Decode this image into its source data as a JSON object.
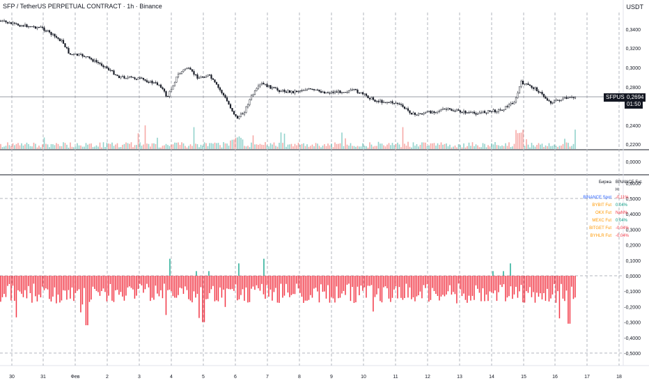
{
  "header": {
    "title": "SFP / TetherUS PERPETUAL CONTRACT · 1h · Binance"
  },
  "currency": "USDT",
  "price_axis": [
    "0,3400",
    "0,3200",
    "0,3000",
    "0,2800",
    "0,2400",
    "0,2200"
  ],
  "mid_axis": [
    "0,0000"
  ],
  "osc_axis": [
    "0,6000",
    "0,5000",
    "0,4000",
    "0,3000",
    "0,2000",
    "0,1000",
    "0,0000",
    "-0,1000",
    "-0,2000",
    "-0,3000",
    "-0,4000",
    "-0,5000"
  ],
  "price_label": {
    "symbol": "SFPUSDT.P",
    "value": "0,2694",
    "countdown": "01:50"
  },
  "x_axis": [
    "30",
    "31",
    "Фев",
    "2",
    "3",
    "4",
    "5",
    "6",
    "7",
    "8",
    "9",
    "10",
    "11",
    "12",
    "13",
    "14",
    "15",
    "16",
    "17",
    "18"
  ],
  "exchange_table": {
    "header": [
      "Биржа",
      "BINANCE Fut. H"
    ],
    "rows": [
      {
        "name": "BINANCE Spot",
        "value": "-0.11%",
        "name_color": "#2962ff",
        "value_color": "#f23645"
      },
      {
        "name": "BYBIT Fut",
        "value": "0.04%",
        "name_color": "#ff9800",
        "value_color": "#089981"
      },
      {
        "name": "OKX Fut",
        "value": "NaN%",
        "name_color": "#ff9800",
        "value_color": "#f23645"
      },
      {
        "name": "MEXC Fut",
        "value": "0.04%",
        "name_color": "#ff9800",
        "value_color": "#089981"
      },
      {
        "name": "BITGET Fut",
        "value": "-0.04%",
        "name_color": "#ff9800",
        "value_color": "#f23645"
      },
      {
        "name": "BYHLR Fut",
        "value": "-0.04%",
        "name_color": "#ff9800",
        "value_color": "#f23645"
      }
    ]
  },
  "colors": {
    "up": "#26a69a",
    "down": "#ef5350",
    "osc_neg": "#f23645",
    "osc_pos": "#22ab94",
    "grid": "#b2b5be"
  }
}
